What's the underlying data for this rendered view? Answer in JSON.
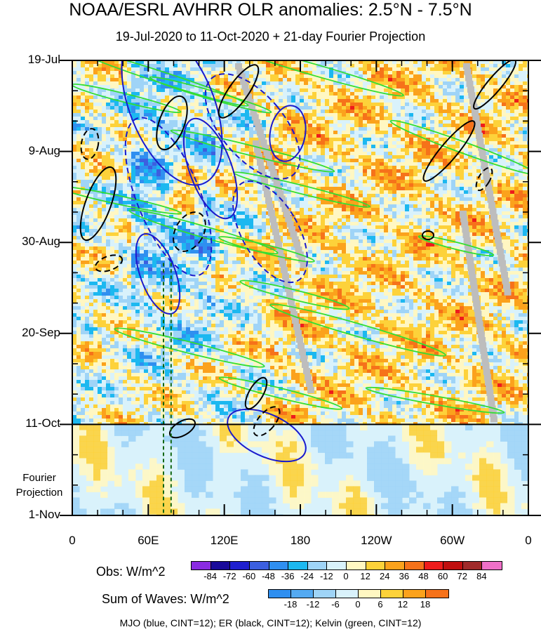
{
  "title": "NOAA/ESRL AVHRR OLR anomalies: 2.5°N - 7.5°N",
  "subtitle": "19-Jul-2020 to 11-Oct-2020 + 21-day Fourier Projection",
  "chart_data": {
    "type": "heatmap",
    "description_axes": "Hovmoller: longitude (x) vs time (y, increasing downward)",
    "x_ticks": [
      "0",
      "60E",
      "120E",
      "180",
      "120W",
      "60W",
      "0"
    ],
    "x_tick_degrees": [
      0,
      60,
      120,
      180,
      240,
      300,
      360
    ],
    "x_range_degrees": [
      0,
      360
    ],
    "y_ticks": [
      "19-Jul",
      "9-Aug",
      "30-Aug",
      "20-Sep",
      "11-Oct",
      "1-Nov"
    ],
    "y_tick_day_offsets": [
      0,
      21,
      42,
      63,
      84,
      105
    ],
    "y_range_days": [
      0,
      105
    ],
    "observation_end_day": 84,
    "projection_label": [
      "Fourier",
      "Projection"
    ],
    "reference_longitudes": [
      72,
      78
    ],
    "obs_colorbar": {
      "title": "Obs: W/m^2",
      "levels": [
        -84,
        -72,
        -60,
        -48,
        -36,
        -24,
        -12,
        0,
        12,
        24,
        36,
        48,
        60,
        72,
        84
      ],
      "level_labels": [
        "-84",
        "-72",
        "-60",
        "-48",
        "-36",
        "-24",
        "-12",
        "0",
        "12",
        "24",
        "36",
        "48",
        "60",
        "72",
        "84"
      ],
      "colors": [
        "#8a2be2",
        "#1a0a9a",
        "#1f1fcf",
        "#3c5fe0",
        "#2f8ff0",
        "#1cb8f0",
        "#9fd4f7",
        "#d9f2fb",
        "#fff7c2",
        "#fdd23a",
        "#fba21c",
        "#f6721a",
        "#ee1c1c",
        "#c00f0f",
        "#a02a2a",
        "#f070c8"
      ]
    },
    "wave_colorbar": {
      "title": "Sum of Waves: W/m^2",
      "levels": [
        -18,
        -12,
        -6,
        0,
        6,
        12,
        18
      ],
      "level_labels": [
        "-18",
        "-12",
        "-6",
        "0",
        "6",
        "12",
        "18"
      ],
      "colors": [
        "#2f8ff0",
        "#54aaf2",
        "#9fd4f7",
        "#d9f2fb",
        "#fff7c2",
        "#fdd23a",
        "#fba21c",
        "#f6721a"
      ]
    },
    "contours": [
      {
        "name": "MJO",
        "color": "blue",
        "cint": 12
      },
      {
        "name": "ER",
        "color": "black",
        "cint": 12
      },
      {
        "name": "Kelvin",
        "color": "green",
        "cint": 12
      }
    ]
  },
  "footer": "MJO (blue, CINT=12); ER (black, CINT=12); Kelvin (green, CINT=12)"
}
